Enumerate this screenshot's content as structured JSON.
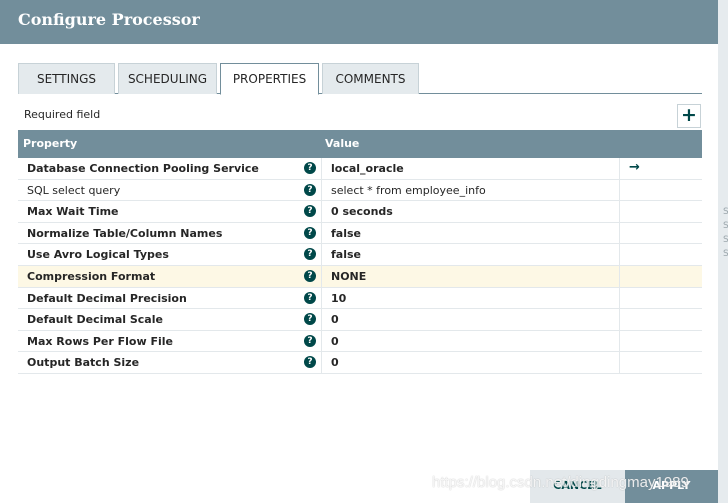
{
  "dialog": {
    "title": "Configure Processor"
  },
  "tabs": [
    {
      "label": "SETTINGS"
    },
    {
      "label": "SCHEDULING"
    },
    {
      "label": "PROPERTIES"
    },
    {
      "label": "COMMENTS"
    }
  ],
  "active_tab": "PROPERTIES",
  "properties": {
    "required_label": "Required field",
    "add_button": "+",
    "columns": {
      "property": "Property",
      "value": "Value"
    },
    "rows": [
      {
        "name": "Database Connection Pooling Service",
        "value": "local_oracle",
        "required": true,
        "has_goto": true
      },
      {
        "name": "SQL select query",
        "value": "select * from employee_info",
        "required": false
      },
      {
        "name": "Max Wait Time",
        "value": "0 seconds",
        "required": true
      },
      {
        "name": "Normalize Table/Column Names",
        "value": "false",
        "required": true
      },
      {
        "name": "Use Avro Logical Types",
        "value": "false",
        "required": true
      },
      {
        "name": "Compression Format",
        "value": "NONE",
        "required": true,
        "highlighted": true
      },
      {
        "name": "Default Decimal Precision",
        "value": "10",
        "required": true
      },
      {
        "name": "Default Decimal Scale",
        "value": "0",
        "required": true
      },
      {
        "name": "Max Rows Per Flow File",
        "value": "0",
        "required": true
      },
      {
        "name": "Output Batch Size",
        "value": "0",
        "required": true
      }
    ],
    "help_glyph": "?",
    "goto_glyph": "→"
  },
  "footer": {
    "cancel_label": "CANCEL",
    "apply_label": "APPLY"
  },
  "watermark": "https://blog.csdn.net/dingdingmay1989",
  "colors": {
    "header": "#728e9b",
    "accent": "#004849",
    "highlight_row": "#fdf8e5"
  }
}
